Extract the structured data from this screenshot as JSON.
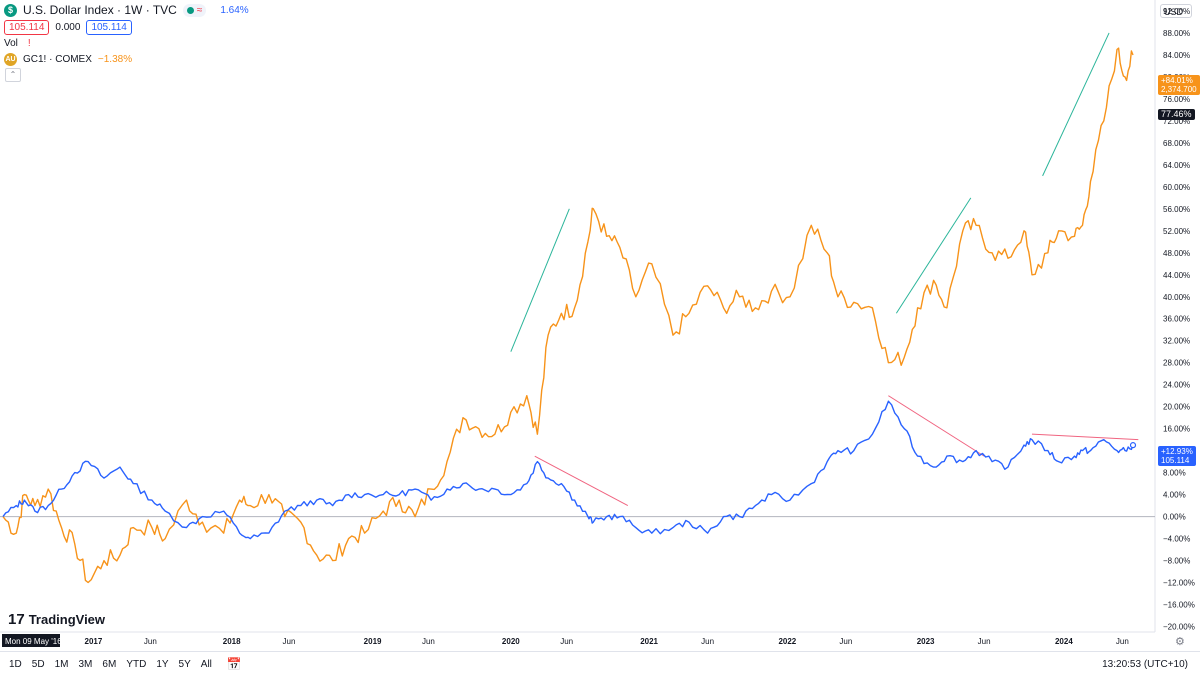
{
  "header": {
    "title": "U.S. Dollar Index · 1W · TVC",
    "change_pct": "1.64%",
    "sell_price": "105.114",
    "spread": "0.000",
    "buy_price": "105.114",
    "vol_label": "Vol",
    "gold_label": "GC1! · COMEX",
    "gold_change": "−1.38%",
    "currency": "USD"
  },
  "price_tags": {
    "gold_pct": "+84.01%",
    "gold_price": "2,374.700",
    "crosshair": "77.46%",
    "dxy_pct": "+12.93%",
    "dxy_price": "105.114"
  },
  "x_labels": [
    "Mon 09 May '16",
    "2017",
    "Jun",
    "2018",
    "Jun",
    "2019",
    "Jun",
    "2020",
    "Jun",
    "2021",
    "Jun",
    "2022",
    "Jun",
    "2023",
    "Jun",
    "2024",
    "Jun"
  ],
  "branding": "TradingView",
  "bottom_bar": {
    "ranges": [
      "1D",
      "5D",
      "1M",
      "3M",
      "6M",
      "YTD",
      "1Y",
      "5Y",
      "All"
    ],
    "clock": "13:20:53 (UTC+10)"
  },
  "colors": {
    "gold": "#f7931a",
    "dxy": "#2962ff",
    "green_trend": "#2bb59a",
    "red_trend": "#f06480"
  },
  "chart_data": {
    "type": "line",
    "x_start": "2016-05-09",
    "x_end": "2024-07-01",
    "y_unit": "% change",
    "ylim": [
      -21,
      94
    ],
    "y_ticks": [
      92,
      88,
      84,
      80,
      76,
      72,
      68,
      64,
      60,
      56,
      52,
      48,
      44,
      40,
      36,
      32,
      28,
      24,
      20,
      16,
      12,
      8,
      4,
      0,
      -4,
      -8,
      -12,
      -16,
      -20
    ],
    "series": [
      {
        "name": "GC1! · COMEX",
        "color": "#f7931a",
        "points": [
          [
            "2016-05-09",
            0
          ],
          [
            "2016-06-13",
            -3
          ],
          [
            "2016-07-04",
            4
          ],
          [
            "2016-08-01",
            2
          ],
          [
            "2016-09-05",
            5
          ],
          [
            "2016-10-10",
            -2
          ],
          [
            "2016-11-14",
            -5
          ],
          [
            "2016-12-19",
            -12
          ],
          [
            "2017-01-30",
            -8
          ],
          [
            "2017-03-13",
            -7
          ],
          [
            "2017-04-17",
            -2
          ],
          [
            "2017-06-05",
            -2
          ],
          [
            "2017-07-10",
            -4
          ],
          [
            "2017-09-04",
            3
          ],
          [
            "2017-10-16",
            -1
          ],
          [
            "2017-12-11",
            -3
          ],
          [
            "2018-01-22",
            3
          ],
          [
            "2018-02-19",
            2
          ],
          [
            "2018-04-09",
            4
          ],
          [
            "2018-05-21",
            0
          ],
          [
            "2018-07-02",
            -1
          ],
          [
            "2018-08-13",
            -7
          ],
          [
            "2018-09-24",
            -8
          ],
          [
            "2018-11-05",
            -4
          ],
          [
            "2018-12-17",
            -3
          ],
          [
            "2019-02-04",
            1
          ],
          [
            "2019-03-18",
            3
          ],
          [
            "2019-04-29",
            0
          ],
          [
            "2019-06-10",
            5
          ],
          [
            "2019-07-22",
            10
          ],
          [
            "2019-09-02",
            18
          ],
          [
            "2019-10-14",
            16
          ],
          [
            "2019-11-25",
            15
          ],
          [
            "2020-01-06",
            19
          ],
          [
            "2020-02-17",
            22
          ],
          [
            "2020-03-16",
            15
          ],
          [
            "2020-04-13",
            33
          ],
          [
            "2020-05-18",
            37
          ],
          [
            "2020-06-22",
            38
          ],
          [
            "2020-07-27",
            50
          ],
          [
            "2020-08-10",
            56
          ],
          [
            "2020-09-14",
            51
          ],
          [
            "2020-10-19",
            49
          ],
          [
            "2020-11-30",
            40
          ],
          [
            "2021-01-11",
            46
          ],
          [
            "2021-03-08",
            33
          ],
          [
            "2021-04-19,",
            37
          ],
          [
            "2021-06-07",
            42
          ],
          [
            "2021-07-19",
            38
          ],
          [
            "2021-08-30",
            40
          ],
          [
            "2021-10-11",
            38
          ],
          [
            "2021-11-22",
            41
          ],
          [
            "2022-01-10",
            40
          ],
          [
            "2022-03-07",
            53
          ],
          [
            "2022-04-18",
            48
          ],
          [
            "2022-05-16",
            40
          ],
          [
            "2022-06-27",
            39
          ],
          [
            "2022-08-15",
            38
          ],
          [
            "2022-09-26",
            28
          ],
          [
            "2022-11-07",
            29
          ],
          [
            "2022-12-12",
            38
          ],
          [
            "2023-01-23",
            43
          ],
          [
            "2023-02-27",
            38
          ],
          [
            "2023-04-10",
            52
          ],
          [
            "2023-05-15",
            53
          ],
          [
            "2023-06-26",
            48
          ],
          [
            "2023-08-07",
            47
          ],
          [
            "2023-09-18",
            52
          ],
          [
            "2023-10-09",
            44
          ],
          [
            "2023-11-20",
            48
          ],
          [
            "2023-12-18",
            52
          ],
          [
            "2024-01-29",
            51
          ],
          [
            "2024-02-19",
            53
          ],
          [
            "2024-03-11",
            61
          ],
          [
            "2024-04-15",
            72
          ],
          [
            "2024-05-20",
            85
          ],
          [
            "2024-06-10",
            80
          ],
          [
            "2024-07-01",
            84
          ]
        ]
      },
      {
        "name": "U.S. Dollar Index",
        "color": "#2962ff",
        "points": [
          [
            "2016-05-09",
            0
          ],
          [
            "2016-06-13",
            2
          ],
          [
            "2016-07-04",
            3
          ],
          [
            "2016-08-01",
            1
          ],
          [
            "2016-09-05",
            2
          ],
          [
            "2016-10-10",
            5
          ],
          [
            "2016-11-14",
            8
          ],
          [
            "2016-12-19",
            10
          ],
          [
            "2017-01-30",
            7
          ],
          [
            "2017-03-13",
            9
          ],
          [
            "2017-04-17",
            6
          ],
          [
            "2017-06-05",
            3
          ],
          [
            "2017-07-10",
            1
          ],
          [
            "2017-09-04",
            -2
          ],
          [
            "2017-10-16",
            0
          ],
          [
            "2017-12-11",
            1
          ],
          [
            "2018-01-22",
            -3
          ],
          [
            "2018-02-19",
            -4
          ],
          [
            "2018-04-09",
            -3
          ],
          [
            "2018-05-21",
            1
          ],
          [
            "2018-07-02",
            2
          ],
          [
            "2018-08-13",
            3
          ],
          [
            "2018-09-24",
            2
          ],
          [
            "2018-11-05",
            4
          ],
          [
            "2018-12-17",
            4
          ],
          [
            "2019-02-04",
            4
          ],
          [
            "2019-03-18",
            4
          ],
          [
            "2019-04-29",
            5
          ],
          [
            "2019-06-10",
            3
          ],
          [
            "2019-07-22",
            5
          ],
          [
            "2019-09-02",
            6
          ],
          [
            "2019-10-14",
            5
          ],
          [
            "2019-11-25",
            5
          ],
          [
            "2020-01-06",
            4
          ],
          [
            "2020-02-17",
            6
          ],
          [
            "2020-03-16",
            10
          ],
          [
            "2020-04-13",
            7
          ],
          [
            "2020-05-18",
            6
          ],
          [
            "2020-06-22",
            3
          ],
          [
            "2020-07-27",
            0
          ],
          [
            "2020-08-10",
            -1
          ],
          [
            "2020-09-14",
            0
          ],
          [
            "2020-10-19",
            0
          ],
          [
            "2020-11-30",
            -2
          ],
          [
            "2021-01-11",
            -3
          ],
          [
            "2021-03-08",
            -2
          ],
          [
            "2021-04-19",
            -1
          ],
          [
            "2021-06-07",
            -3
          ],
          [
            "2021-07-19",
            0
          ],
          [
            "2021-08-30",
            0
          ],
          [
            "2021-10-11",
            2
          ],
          [
            "2021-11-22",
            4
          ],
          [
            "2022-01-10",
            3
          ],
          [
            "2022-03-07",
            6
          ],
          [
            "2022-04-18",
            10
          ],
          [
            "2022-05-16",
            12
          ],
          [
            "2022-06-27",
            12
          ],
          [
            "2022-08-15",
            15
          ],
          [
            "2022-09-26",
            21
          ],
          [
            "2022-11-07",
            16
          ],
          [
            "2022-12-12",
            11
          ],
          [
            "2023-01-23",
            9
          ],
          [
            "2023-02-27",
            11
          ],
          [
            "2023-04-10",
            10
          ],
          [
            "2023-05-15",
            12
          ],
          [
            "2023-06-26",
            10
          ],
          [
            "2023-08-07",
            9
          ],
          [
            "2023-09-18",
            13
          ],
          [
            "2023-10-09",
            14
          ],
          [
            "2023-11-20",
            12
          ],
          [
            "2023-12-18",
            10
          ],
          [
            "2024-01-29",
            11
          ],
          [
            "2024-02-19",
            12
          ],
          [
            "2024-03-11",
            12
          ],
          [
            "2024-04-15",
            14
          ],
          [
            "2024-05-20",
            12
          ],
          [
            "2024-06-10",
            12
          ],
          [
            "2024-07-01",
            13
          ]
        ]
      }
    ],
    "trendlines": [
      {
        "color": "#2bb59a",
        "from": [
          "2020-01-06",
          30
        ],
        "to": [
          "2020-06-08",
          56
        ]
      },
      {
        "color": "#2bb59a",
        "from": [
          "2022-10-17",
          37
        ],
        "to": [
          "2023-05-01",
          58
        ]
      },
      {
        "color": "#2bb59a",
        "from": [
          "2023-11-06",
          62
        ],
        "to": [
          "2024-04-29",
          88
        ]
      },
      {
        "color": "#f06480",
        "from": [
          "2020-03-09",
          11
        ],
        "to": [
          "2020-11-09",
          2
        ]
      },
      {
        "color": "#f06480",
        "from": [
          "2022-09-26",
          22
        ],
        "to": [
          "2023-06-05",
          11
        ]
      },
      {
        "color": "#f06480",
        "from": [
          "2023-10-09",
          15
        ],
        "to": [
          "2024-07-15",
          14
        ]
      }
    ]
  }
}
